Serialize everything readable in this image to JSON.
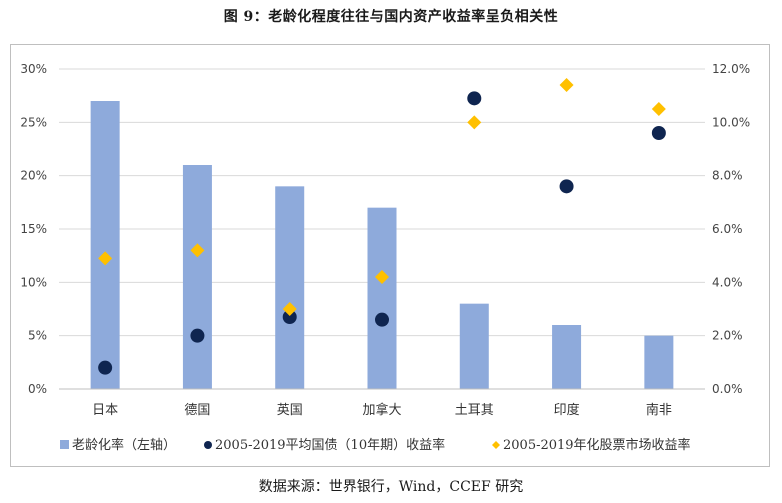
{
  "title": "图 9：老龄化程度往往与国内资产收益率呈负相关性",
  "source": "数据来源：世界银行，Wind，CCEF 研究",
  "colors": {
    "bar": "#8eaadb",
    "bond": "#0f2550",
    "stock": "#ffc000",
    "grid": "#d9d9d9"
  },
  "chart_data": {
    "type": "bar",
    "categories": [
      "日本",
      "德国",
      "英国",
      "加拿大",
      "土耳其",
      "印度",
      "南非"
    ],
    "left_axis": {
      "min": 0,
      "max": 30,
      "ticks": [
        "0%",
        "5%",
        "10%",
        "15%",
        "20%",
        "25%",
        "30%"
      ]
    },
    "right_axis": {
      "min": 0,
      "max": 12,
      "ticks": [
        "0.0%",
        "2.0%",
        "4.0%",
        "6.0%",
        "8.0%",
        "10.0%",
        "12.0%"
      ]
    },
    "grid": true,
    "legend_position": "bottom",
    "series": [
      {
        "name": "老龄化率（左轴）",
        "type": "bar",
        "axis": "left",
        "values": [
          27,
          21,
          19,
          17,
          8,
          6,
          5
        ]
      },
      {
        "name": "2005-2019平均国债（10年期）收益率",
        "type": "scatter",
        "marker": "circle",
        "axis": "right",
        "values": [
          0.8,
          2.0,
          2.7,
          2.6,
          10.9,
          7.6,
          9.6
        ]
      },
      {
        "name": "2005-2019年化股票市场收益率",
        "type": "scatter",
        "marker": "diamond",
        "axis": "right",
        "values": [
          4.9,
          5.2,
          3.0,
          4.2,
          10.0,
          11.4,
          10.5
        ]
      }
    ]
  }
}
